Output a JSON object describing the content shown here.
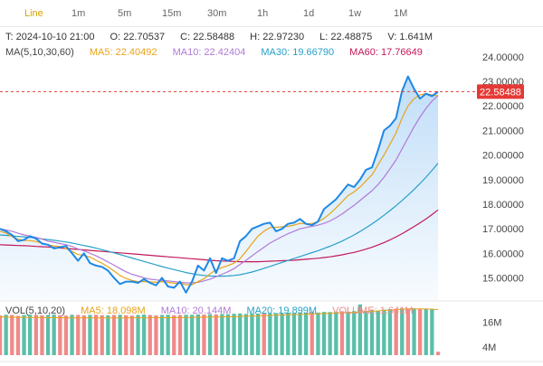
{
  "toolbar": {
    "timeframes": [
      "Line",
      "1m",
      "5m",
      "15m",
      "30m",
      "1h",
      "1d",
      "1w",
      "1M"
    ],
    "active": "Line"
  },
  "info": {
    "time": "T: 2024-10-10 21:00",
    "open": "O: 22.70537",
    "close": "C: 22.58488",
    "high": "H: 22.97230",
    "low": "L: 22.48875",
    "volume": "V: 1.641M",
    "ma_label": "MA(5,10,30,60)",
    "ma5": "MA5: 22.40492",
    "ma10": "MA10: 22.42404",
    "ma30": "MA30: 19.66790",
    "ma60": "MA60: 17.76649"
  },
  "vol_info": {
    "label": "VOL(5,10,20)",
    "ma5": "MA5: 18.098M",
    "ma10": "MA10: 20.144M",
    "ma20": "MA20: 19.899M",
    "volume": "VOLUME: 1.641M"
  },
  "colors": {
    "price": "#1e88e5",
    "ma5": "#e8a317",
    "ma10": "#b07ad6",
    "ma30": "#26a0c8",
    "ma60": "#c2185b",
    "last_price": "#e53935",
    "vol_up": "#5bbfa9",
    "vol_down": "#ef8a8a"
  },
  "chart_data": {
    "type": "line",
    "y_axis_ticks": [
      "24.00000",
      "23.00000",
      "22.00000",
      "21.00000",
      "20.00000",
      "19.00000",
      "18.00000",
      "17.00000",
      "16.00000",
      "15.00000"
    ],
    "ylim": [
      14.1,
      24.4
    ],
    "last_price_label": "22.58488",
    "last_price": 22.58488,
    "price": [
      17.0,
      16.9,
      16.75,
      16.5,
      16.55,
      16.7,
      16.6,
      16.4,
      16.35,
      16.2,
      16.25,
      16.3,
      16.0,
      15.7,
      16.0,
      15.6,
      15.5,
      15.45,
      15.3,
      15.0,
      14.75,
      14.85,
      14.85,
      14.8,
      14.95,
      14.8,
      14.7,
      15.0,
      14.65,
      14.6,
      14.85,
      14.4,
      14.85,
      15.5,
      15.3,
      15.8,
      15.2,
      15.8,
      15.7,
      15.8,
      16.5,
      16.7,
      17.0,
      17.1,
      17.2,
      17.25,
      16.9,
      17.0,
      17.2,
      17.25,
      17.4,
      17.2,
      17.15,
      17.3,
      17.8,
      18.0,
      18.2,
      18.5,
      18.8,
      18.7,
      19.0,
      19.4,
      19.5,
      20.2,
      21.0,
      21.2,
      21.5,
      22.6,
      23.2,
      22.7,
      22.3,
      22.5,
      22.4,
      22.58488
    ],
    "ma5": [
      16.9,
      16.82,
      16.68,
      16.58,
      16.52,
      16.52,
      16.48,
      16.42,
      16.35,
      16.3,
      16.28,
      16.2,
      16.08,
      15.95,
      15.92,
      15.85,
      15.72,
      15.6,
      15.45,
      15.28,
      15.1,
      14.98,
      14.9,
      14.85,
      14.85,
      14.84,
      14.82,
      14.85,
      14.82,
      14.78,
      14.78,
      14.72,
      14.72,
      14.85,
      14.96,
      15.17,
      15.33,
      15.42,
      15.5,
      15.6,
      15.78,
      16.08,
      16.4,
      16.7,
      16.9,
      17.05,
      17.06,
      17.08,
      17.1,
      17.15,
      17.22,
      17.2,
      17.22,
      17.28,
      17.42,
      17.62,
      17.85,
      18.1,
      18.35,
      18.5,
      18.7,
      18.95,
      19.2,
      19.6,
      20.0,
      20.45,
      20.9,
      21.5,
      22.0,
      22.3,
      22.45,
      22.5,
      22.45,
      22.40492
    ],
    "ma10": [
      17.0,
      16.95,
      16.9,
      16.82,
      16.75,
      16.7,
      16.65,
      16.58,
      16.5,
      16.45,
      16.4,
      16.35,
      16.28,
      16.18,
      16.1,
      16.0,
      15.9,
      15.78,
      15.65,
      15.52,
      15.38,
      15.25,
      15.15,
      15.08,
      15.0,
      14.95,
      14.92,
      14.9,
      14.88,
      14.85,
      14.82,
      14.8,
      14.8,
      14.82,
      14.88,
      14.95,
      15.05,
      15.15,
      15.25,
      15.38,
      15.55,
      15.72,
      15.9,
      16.08,
      16.25,
      16.42,
      16.55,
      16.68,
      16.8,
      16.9,
      17.0,
      17.05,
      17.1,
      17.15,
      17.22,
      17.32,
      17.45,
      17.6,
      17.78,
      17.95,
      18.15,
      18.35,
      18.55,
      18.8,
      19.1,
      19.45,
      19.8,
      20.25,
      20.7,
      21.15,
      21.55,
      21.9,
      22.2,
      22.42404
    ],
    "ma30": [
      16.75,
      16.73,
      16.71,
      16.69,
      16.67,
      16.65,
      16.62,
      16.59,
      16.56,
      16.53,
      16.5,
      16.46,
      16.42,
      16.37,
      16.32,
      16.27,
      16.21,
      16.15,
      16.09,
      16.02,
      15.95,
      15.88,
      15.81,
      15.74,
      15.67,
      15.6,
      15.53,
      15.46,
      15.4,
      15.34,
      15.28,
      15.22,
      15.17,
      15.13,
      15.1,
      15.08,
      15.07,
      15.07,
      15.08,
      15.1,
      15.13,
      15.18,
      15.24,
      15.31,
      15.39,
      15.47,
      15.55,
      15.63,
      15.71,
      15.79,
      15.87,
      15.95,
      16.03,
      16.11,
      16.2,
      16.29,
      16.39,
      16.5,
      16.62,
      16.75,
      16.89,
      17.04,
      17.2,
      17.37,
      17.55,
      17.74,
      17.94,
      18.15,
      18.37,
      18.6,
      18.84,
      19.1,
      19.38,
      19.6679
    ],
    "ma60": [
      16.35,
      16.34,
      16.33,
      16.32,
      16.31,
      16.3,
      16.28,
      16.27,
      16.26,
      16.24,
      16.22,
      16.2,
      16.18,
      16.16,
      16.14,
      16.12,
      16.1,
      16.08,
      16.06,
      16.04,
      16.02,
      16.0,
      15.98,
      15.96,
      15.94,
      15.92,
      15.9,
      15.88,
      15.86,
      15.84,
      15.82,
      15.8,
      15.78,
      15.76,
      15.74,
      15.72,
      15.7,
      15.69,
      15.68,
      15.67,
      15.66,
      15.66,
      15.66,
      15.66,
      15.67,
      15.68,
      15.69,
      15.7,
      15.71,
      15.72,
      15.74,
      15.76,
      15.78,
      15.8,
      15.83,
      15.86,
      15.9,
      15.94,
      15.99,
      16.04,
      16.1,
      16.17,
      16.25,
      16.34,
      16.44,
      16.55,
      16.67,
      16.8,
      16.94,
      17.09,
      17.24,
      17.4,
      17.58,
      17.76649
    ]
  },
  "volume_chart": {
    "type": "bar",
    "y_axis_ticks": [
      "16M",
      "4M"
    ],
    "ylim": [
      0,
      24
    ],
    "values": [
      19.2,
      19.5,
      19.4,
      19.0,
      19.4,
      19.6,
      19.4,
      19.2,
      19.4,
      19.6,
      19.3,
      19.1,
      19.5,
      19.4,
      19.2,
      19.4,
      19.5,
      19.3,
      19.2,
      19.4,
      19.5,
      19.3,
      19.1,
      19.4,
      19.6,
      19.4,
      19.2,
      19.4,
      19.5,
      19.3,
      19.4,
      19.5,
      19.5,
      19.7,
      19.6,
      19.8,
      19.7,
      19.9,
      19.8,
      20.0,
      20.1,
      19.9,
      20.2,
      20.1,
      20.3,
      20.2,
      20.4,
      20.3,
      20.5,
      20.4,
      20.6,
      20.5,
      20.8,
      20.6,
      20.9,
      20.8,
      21.0,
      21.2,
      21.0,
      21.3,
      24.5,
      21.4,
      21.8,
      21.6,
      22.0,
      22.2,
      22.4,
      22.6,
      22.5,
      22.6,
      22.4,
      22.5,
      22.3,
      1.641
    ],
    "up": [
      0,
      1,
      0,
      0,
      1,
      1,
      0,
      0,
      1,
      1,
      0,
      0,
      1,
      0,
      0,
      1,
      0,
      0,
      1,
      0,
      1,
      0,
      0,
      1,
      1,
      0,
      0,
      1,
      1,
      0,
      0,
      1,
      1,
      1,
      0,
      1,
      0,
      1,
      1,
      1,
      1,
      1,
      1,
      1,
      0,
      1,
      1,
      1,
      1,
      1,
      1,
      1,
      0,
      1,
      1,
      1,
      1,
      0,
      1,
      1,
      1,
      1,
      1,
      1,
      1,
      1,
      0,
      1,
      0,
      1,
      0,
      1,
      1,
      0
    ],
    "ma_series": [
      18.5,
      18.4,
      18.3,
      18.3,
      18.25,
      18.2,
      18.2,
      18.15,
      18.1,
      18.1,
      18.1,
      18.05,
      18.0,
      18.0,
      18.0,
      18.0,
      18.0,
      18.0,
      18.0,
      18.0,
      18.0,
      18.0,
      18.05,
      18.05,
      18.05,
      18.05,
      18.1,
      18.1,
      18.1,
      18.15,
      18.15,
      18.2,
      18.25,
      18.3,
      18.35,
      18.4,
      18.45,
      18.5,
      18.55,
      18.6,
      18.7,
      18.8,
      18.9,
      19.0,
      19.1,
      19.2,
      19.3,
      19.4,
      19.5,
      19.6,
      19.7,
      19.8,
      19.9,
      20.0,
      20.1,
      20.2,
      20.3,
      20.4,
      20.5,
      20.7,
      20.9,
      21.0,
      21.2,
      21.4,
      21.6,
      21.8,
      22.0,
      22.2,
      22.3,
      22.4,
      22.4,
      22.3,
      22.2,
      22.0
    ]
  }
}
